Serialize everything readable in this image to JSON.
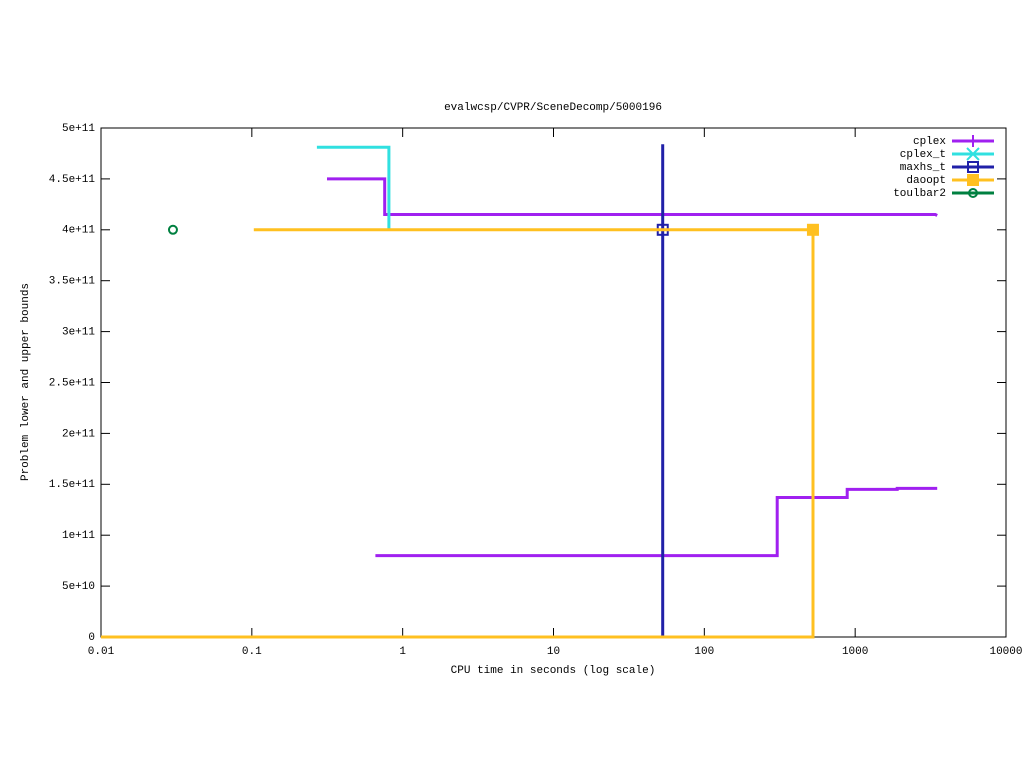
{
  "chart_data": {
    "type": "line",
    "title": "evalwcsp/CVPR/SceneDecomp/5000196",
    "x_label": "CPU time in seconds (log scale)",
    "y_label": "Problem lower and upper bounds",
    "xscale": "log",
    "xlim": [
      0.01,
      10000
    ],
    "xticks": [
      0.01,
      0.1,
      1,
      10,
      100,
      1000,
      10000
    ],
    "ylim": [
      0,
      500000000000
    ],
    "yticks": [
      0,
      {
        "value": 50000000000,
        "label": "5e+10"
      },
      {
        "value": 100000000000,
        "label": "1e+11"
      },
      {
        "value": 150000000000,
        "label": "1.5e+11"
      },
      {
        "value": 200000000000,
        "label": "2e+11"
      },
      {
        "value": 250000000000,
        "label": "2.5e+11"
      },
      {
        "value": 300000000000,
        "label": "3e+11"
      },
      {
        "value": 350000000000,
        "label": "3.5e+11"
      },
      {
        "value": 400000000000,
        "label": "4e+11"
      },
      {
        "value": 450000000000,
        "label": "4.5e+11"
      },
      {
        "value": 500000000000,
        "label": "5e+11"
      }
    ],
    "grid": false,
    "legend": "top-right",
    "series": [
      {
        "name": "cplex",
        "color": "#a020f0",
        "marker": "plus",
        "x": [
          0.315,
          0.76,
          0.76,
          3400,
          3500,
          null,
          0.66,
          304,
          304,
          885,
          885,
          1900,
          1900,
          3500
        ],
        "values": [
          450000000000,
          450000000000,
          415000000000,
          415000000000,
          414000000000,
          null,
          80000000000,
          80000000000,
          137000000000,
          137000000000,
          145000000000,
          145000000000,
          146000000000,
          146000000000
        ],
        "markers": []
      },
      {
        "name": "cplex_t",
        "color": "#30e0e0",
        "marker": "cross",
        "x": [
          0.27,
          0.81,
          0.81
        ],
        "values": [
          481000000000,
          481000000000,
          401000000000
        ],
        "markers": []
      },
      {
        "name": "maxhs_t",
        "color": "#2020a8",
        "marker": "open-square",
        "x": [
          53,
          53
        ],
        "values": [
          484000000000,
          0
        ],
        "markers": [
          {
            "x": 53,
            "y": 400000000000
          }
        ]
      },
      {
        "name": "daoopt",
        "color": "#ffc020",
        "marker": "filled-square",
        "x": [
          0.103,
          525,
          525,
          0.01
        ],
        "values": [
          400000000000,
          400000000000,
          0,
          0
        ],
        "markers": [
          {
            "x": 525,
            "y": 400000000000
          }
        ]
      },
      {
        "name": "toulbar2",
        "color": "#008040",
        "marker": "circle",
        "x": [
          0.03
        ],
        "values": [
          400000000000
        ],
        "markers": [
          {
            "x": 0.03,
            "y": 400000000000
          }
        ]
      }
    ]
  }
}
